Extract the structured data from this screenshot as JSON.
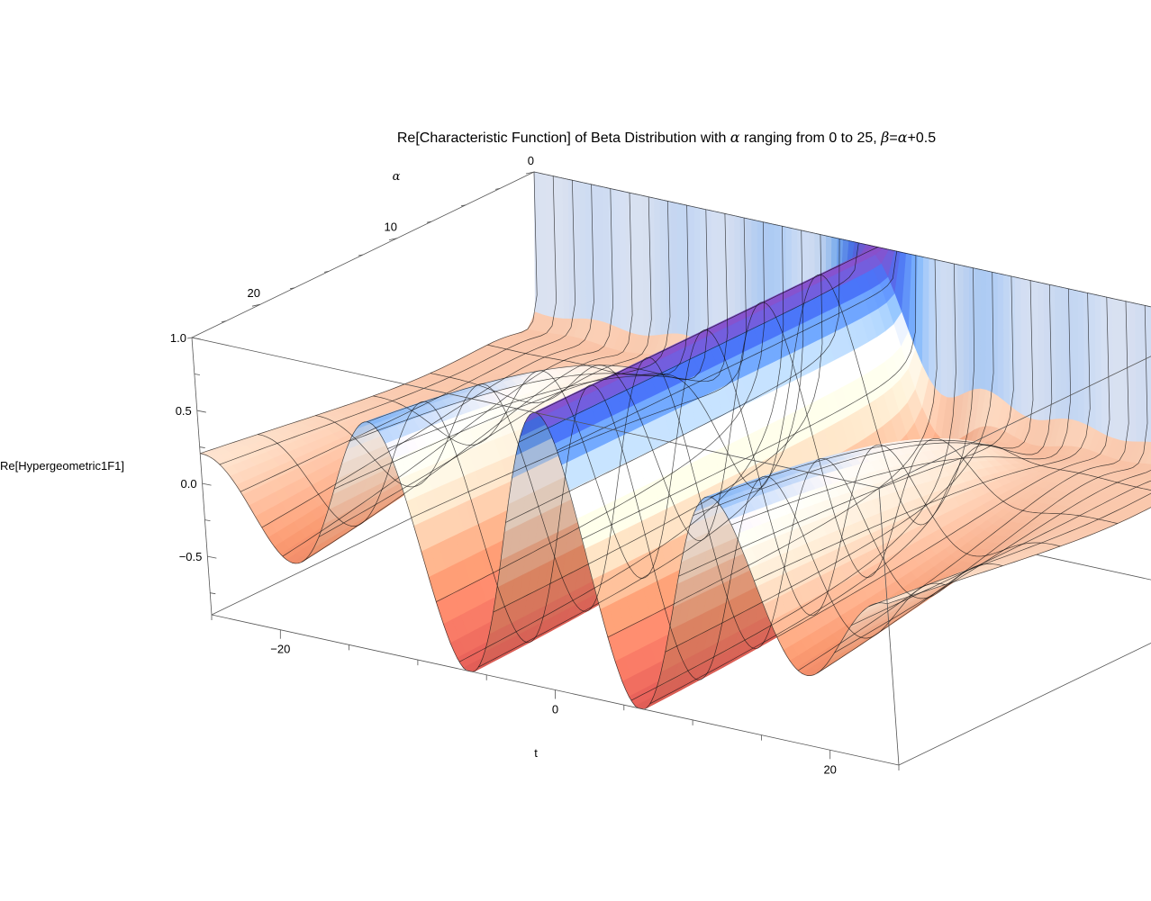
{
  "chart_data": {
    "type": "surface3d",
    "title": {
      "prefix": "Re[Characteristic Function] of Beta Distribution with ",
      "alpha_symbol": "α",
      "middle": " ranging from 0 to 25, ",
      "beta_symbol": "β",
      "eq": "=",
      "alpha_symbol2": "α",
      "suffix": "+0.5"
    },
    "xlabel": "t",
    "ylabel": "α",
    "zlabel": "Re[Hypergeometric1F1]",
    "function": "Re[Hypergeometric1F1[alpha, 2*alpha + 0.5, i*t]]",
    "t_range": [
      -25,
      25
    ],
    "alpha_range": [
      0,
      25
    ],
    "z_range": [
      -0.9,
      1.0
    ],
    "t_ticks": [
      {
        "value": -20,
        "label": "−20"
      },
      {
        "value": 0,
        "label": "0"
      },
      {
        "value": 20,
        "label": "20"
      }
    ],
    "alpha_ticks": [
      {
        "value": 0,
        "label": "0"
      },
      {
        "value": 10,
        "label": "10"
      },
      {
        "value": 20,
        "label": "20"
      }
    ],
    "z_ticks": [
      {
        "value": 1.0,
        "label": "1.0"
      },
      {
        "value": 0.5,
        "label": "0.5"
      },
      {
        "value": 0.0,
        "label": "0.0"
      },
      {
        "value": -0.5,
        "label": "−0.5"
      }
    ],
    "colors": {
      "low": "#e0605a",
      "mid": "#fbe6d4",
      "high_blue": "#3a6cf0",
      "top_violet": "#8a4fc8",
      "mesh": "#111111",
      "box": "#555555"
    }
  }
}
